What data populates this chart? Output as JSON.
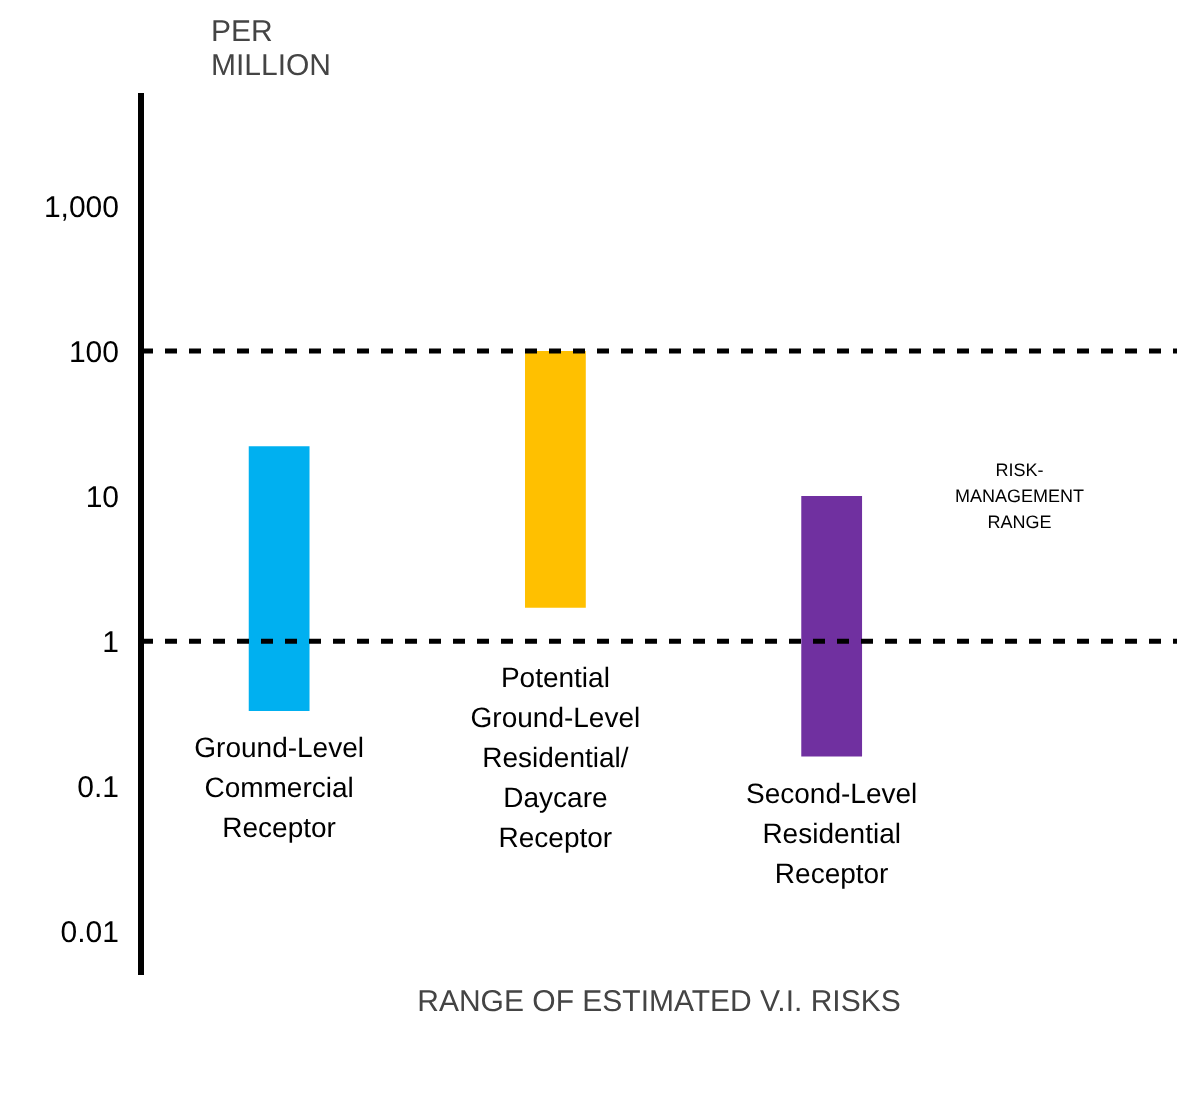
{
  "chart_data": {
    "type": "bar",
    "ylabel": "PER\nMILLION",
    "xlabel": "RANGE OF ESTIMATED V.I. RISKS",
    "categories": [
      "Ground-Level\nCommercial\nReceptor",
      "Potential\nGround-Level\nResidential/\nDaycare\nReceptor",
      "Second-Level\nResidential\nReceptor"
    ],
    "base": [
      0.33,
      1.7,
      0.16
    ],
    "values": [
      21.7,
      98.3,
      9.84
    ],
    "colors": [
      "#00b0f0",
      "#ffc000",
      "#7030a0"
    ],
    "log": true,
    "ylim": [
      0.005,
      6000
    ],
    "yticks": [
      0.01,
      0.1,
      1,
      10,
      100,
      {
        "value": 1000,
        "label": "1,000"
      }
    ],
    "ref_lines": [
      {
        "axis": "y",
        "value": 100,
        "line_style": "dashed",
        "color": "#000000"
      },
      {
        "axis": "y",
        "value": 1,
        "line_style": "dashed",
        "color": "#000000"
      }
    ],
    "annotations": [
      "RISK-\nMANAGEMENT\nRANGE"
    ],
    "grid": false
  }
}
